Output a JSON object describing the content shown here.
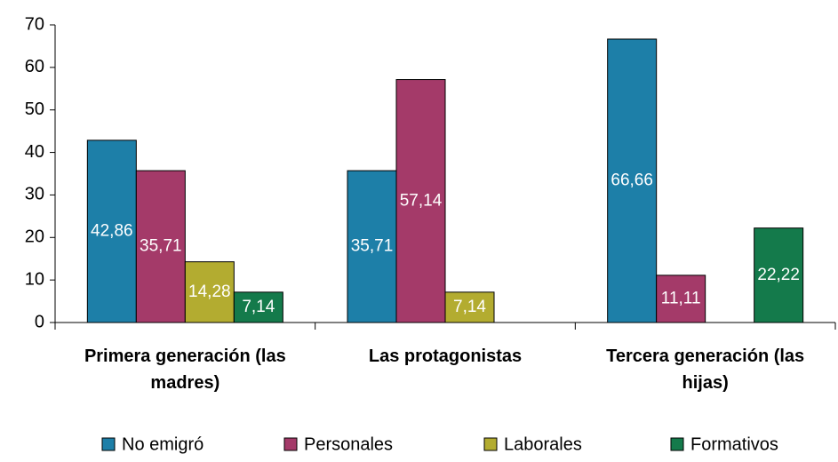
{
  "chart_data": {
    "type": "bar",
    "categories": [
      "Primera generación (las madres)",
      "Las protagonistas",
      "Tercera generación (las hijas)"
    ],
    "series": [
      {
        "name": "No emigró",
        "color": "#1d7fa8",
        "values": [
          42.86,
          35.71,
          66.66
        ],
        "value_labels": [
          "42,86",
          "35,71",
          "66,66"
        ]
      },
      {
        "name": "Personales",
        "color": "#a43a69",
        "values": [
          35.71,
          57.14,
          11.11
        ],
        "value_labels": [
          "35,71",
          "57,14",
          "11,11"
        ]
      },
      {
        "name": "Laborales",
        "color": "#b3ac30",
        "values": [
          14.28,
          7.14,
          null
        ],
        "value_labels": [
          "14,28",
          "7,14",
          null
        ]
      },
      {
        "name": "Formativos",
        "color": "#147a4b",
        "values": [
          7.14,
          null,
          22.22
        ],
        "value_labels": [
          "7,14",
          null,
          "22,22"
        ]
      }
    ],
    "ylim": [
      0,
      70
    ],
    "yticks": [
      0,
      10,
      20,
      30,
      40,
      50,
      60,
      70
    ],
    "grid": false,
    "legend": "bottom"
  }
}
